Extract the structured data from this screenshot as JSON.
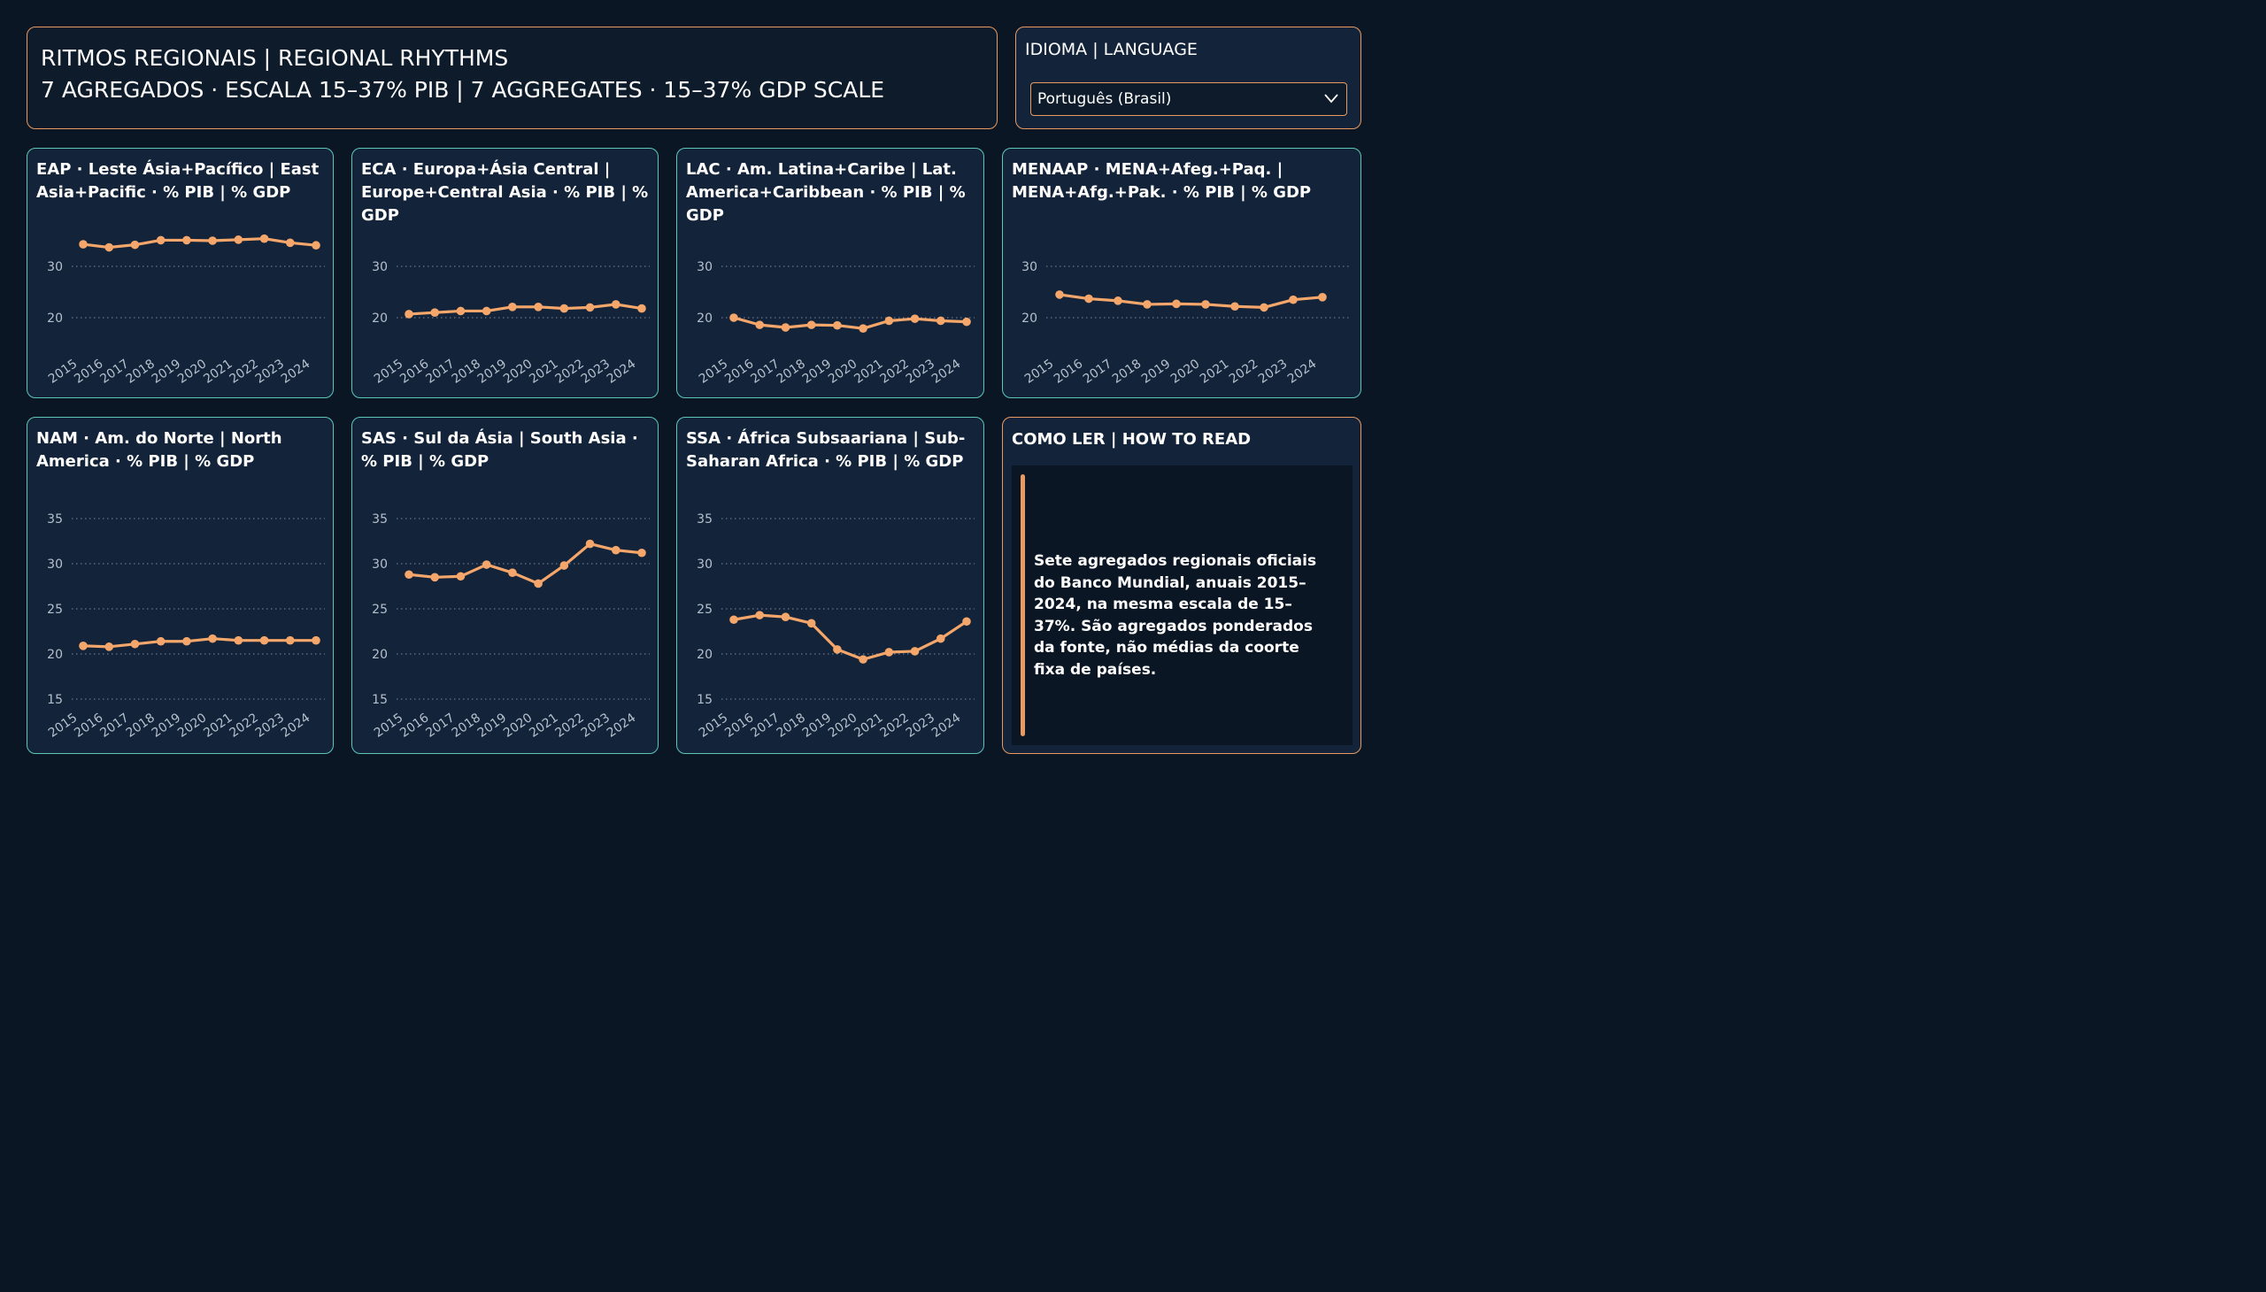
{
  "header": {
    "line1": "RITMOS REGIONAIS | REGIONAL RHYTHMS",
    "line2": "7 AGREGADOS · ESCALA 15–37% PIB | 7 AGGREGATES · 15–37% GDP SCALE"
  },
  "language": {
    "label": "IDIOMA | LANGUAGE",
    "selected": "Português (Brasil)"
  },
  "how_to_read": {
    "title": "COMO LER | HOW TO READ",
    "text": "Sete agregados regionais oficiais do Banco Mundial, anuais 2015–2024, na mesma escala de 15–37%. São agregados ponderados da fonte, não médias da coorte fixa de países."
  },
  "colors": {
    "line": "#f5a66b",
    "tick_text": "#b6c0cc",
    "grid": "#7d8997",
    "accent_orange": "#e89a62",
    "accent_teal": "#5cc7b7"
  },
  "chart_data": [
    {
      "type": "line",
      "title": "EAP · Leste Ásia+Pacífico | East Asia+Pacific · % PIB | % GDP",
      "x": [
        "2015",
        "2016",
        "2017",
        "2018",
        "2019",
        "2020",
        "2021",
        "2022",
        "2023",
        "2024"
      ],
      "values": [
        34.3,
        33.7,
        34.2,
        35.1,
        35.1,
        35.0,
        35.2,
        35.4,
        34.6,
        34.1
      ],
      "yticks": [
        20,
        30
      ],
      "ylim": [
        17,
        37
      ]
    },
    {
      "type": "line",
      "title": "ECA · Europa+Ásia Central | Europe+Central Asia · % PIB | % GDP",
      "x": [
        "2015",
        "2016",
        "2017",
        "2018",
        "2019",
        "2020",
        "2021",
        "2022",
        "2023",
        "2024"
      ],
      "values": [
        20.7,
        21.0,
        21.3,
        21.3,
        22.1,
        22.1,
        21.8,
        22.0,
        22.6,
        21.8
      ],
      "yticks": [
        20,
        30
      ],
      "ylim": [
        17,
        37
      ]
    },
    {
      "type": "line",
      "title": "LAC · Am. Latina+Caribe | Lat. America+Caribbean · % PIB | % GDP",
      "x": [
        "2015",
        "2016",
        "2017",
        "2018",
        "2019",
        "2020",
        "2021",
        "2022",
        "2023",
        "2024"
      ],
      "values": [
        20.0,
        18.6,
        18.1,
        18.6,
        18.5,
        17.9,
        19.4,
        19.8,
        19.4,
        19.2
      ],
      "yticks": [
        20,
        30
      ],
      "ylim": [
        17,
        37
      ]
    },
    {
      "type": "line",
      "title": "MENAAP · MENA+Afeg.+Paq. | MENA+Afg.+Pak. · % PIB | % GDP",
      "x": [
        "2015",
        "2016",
        "2017",
        "2018",
        "2019",
        "2020",
        "2021",
        "2022",
        "2023",
        "2024"
      ],
      "values": [
        24.5,
        23.7,
        23.3,
        22.6,
        22.7,
        22.6,
        22.2,
        22.0,
        23.5,
        24.0
      ],
      "yticks": [
        20,
        30
      ],
      "ylim": [
        17,
        37
      ]
    },
    {
      "type": "line",
      "title": "NAM · Am. do Norte | North America · % PIB | % GDP",
      "x": [
        "2015",
        "2016",
        "2017",
        "2018",
        "2019",
        "2020",
        "2021",
        "2022",
        "2023",
        "2024"
      ],
      "values": [
        20.9,
        20.8,
        21.1,
        21.4,
        21.4,
        21.7,
        21.5,
        21.5,
        21.5,
        21.5
      ],
      "yticks": [
        15,
        20,
        25,
        30,
        35
      ],
      "ylim": [
        15,
        37
      ]
    },
    {
      "type": "line",
      "title": "SAS · Sul da Ásia | South Asia · % PIB | % GDP",
      "x": [
        "2015",
        "2016",
        "2017",
        "2018",
        "2019",
        "2020",
        "2021",
        "2022",
        "2023",
        "2024"
      ],
      "values": [
        28.8,
        28.5,
        28.6,
        29.9,
        29.0,
        27.8,
        29.8,
        32.2,
        31.5,
        31.2
      ],
      "yticks": [
        15,
        20,
        25,
        30,
        35
      ],
      "ylim": [
        15,
        37
      ]
    },
    {
      "type": "line",
      "title": "SSA · África Subsaariana | Sub-Saharan Africa · % PIB | % GDP",
      "x": [
        "2015",
        "2016",
        "2017",
        "2018",
        "2019",
        "2020",
        "2021",
        "2022",
        "2023",
        "2024"
      ],
      "values": [
        23.8,
        24.3,
        24.1,
        23.4,
        20.5,
        19.4,
        20.2,
        20.3,
        21.7,
        23.6
      ],
      "yticks": [
        15,
        20,
        25,
        30,
        35
      ],
      "ylim": [
        15,
        37
      ]
    }
  ]
}
